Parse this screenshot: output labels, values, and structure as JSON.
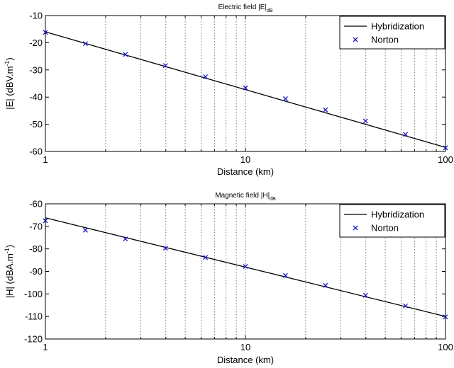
{
  "chart_data": [
    {
      "type": "line",
      "title": "Electric field |E|",
      "title_sub": "dB",
      "xlabel": "Distance (km)",
      "ylabel": "|E| (dBV.m",
      "ylabel_sup": "-1",
      "ylabel_end": ")",
      "xscale": "log",
      "xlim": [
        1,
        100
      ],
      "ylim": [
        -60,
        -10
      ],
      "xticks": [
        1,
        10,
        100
      ],
      "xtick_labels": [
        "1",
        "10",
        "100"
      ],
      "yticks": [
        -60,
        -50,
        -40,
        -30,
        -20,
        -10
      ],
      "ytick_labels": [
        "-60",
        "-50",
        "-40",
        "-30",
        "-20",
        "-10"
      ],
      "grid": "vertical minor and major, dotted",
      "legend": "top-right",
      "series": [
        {
          "name": "Hybridization",
          "style": "line",
          "color": "#000000",
          "x": [
            1,
            100
          ],
          "y": [
            -16,
            -58.5
          ]
        },
        {
          "name": "Norton",
          "style": "x-marker",
          "color": "#1a1acc",
          "x": [
            1,
            1.585,
            2.512,
            3.981,
            6.31,
            10,
            15.85,
            25.12,
            39.81,
            63.1,
            100
          ],
          "y": [
            -16.2,
            -20.3,
            -24.3,
            -28.4,
            -32.5,
            -36.6,
            -40.6,
            -44.7,
            -48.8,
            -53.7,
            -58.7
          ]
        }
      ]
    },
    {
      "type": "line",
      "title": "Magnetic field |H|",
      "title_sub": "dB",
      "xlabel": "Distance (km)",
      "ylabel": "|H| (dBA.m",
      "ylabel_sup": "-1",
      "ylabel_end": ")",
      "xscale": "log",
      "xlim": [
        1,
        100
      ],
      "ylim": [
        -120,
        -60
      ],
      "xticks": [
        1,
        10,
        100
      ],
      "xtick_labels": [
        "1",
        "10",
        "100"
      ],
      "yticks": [
        -120,
        -110,
        -100,
        -90,
        -80,
        -70,
        -60
      ],
      "ytick_labels": [
        "-120",
        "-110",
        "-100",
        "-90",
        "-80",
        "-70",
        "-60"
      ],
      "grid": "vertical minor and major, dotted",
      "legend": "top-right",
      "series": [
        {
          "name": "Hybridization",
          "style": "line",
          "color": "#000000",
          "x": [
            1,
            100
          ],
          "y": [
            -66.2,
            -110
          ]
        },
        {
          "name": "Norton",
          "style": "x-marker",
          "color": "#1a1acc",
          "x": [
            1,
            1.585,
            2.512,
            3.981,
            6.31,
            10,
            15.85,
            25.12,
            39.81,
            63.1,
            100
          ],
          "y": [
            -67.5,
            -71.7,
            -75.6,
            -79.7,
            -83.8,
            -87.8,
            -91.8,
            -96.2,
            -100.6,
            -105.3,
            -110.2
          ]
        }
      ]
    }
  ]
}
